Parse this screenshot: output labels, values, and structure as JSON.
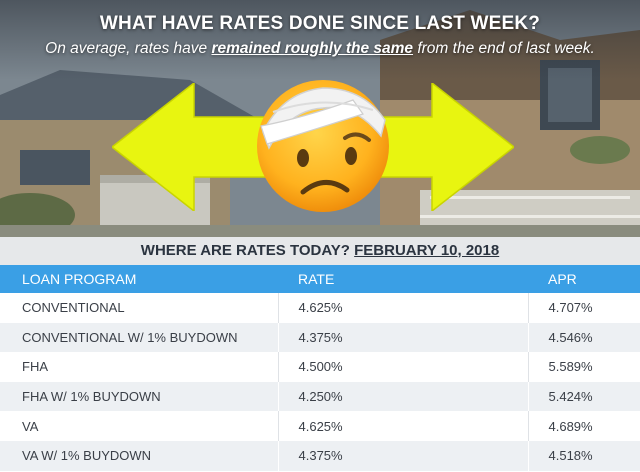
{
  "hero": {
    "headline": "WHAT HAVE RATES DONE SINCE LAST WEEK?",
    "subline_before": "On average, rates have ",
    "subline_emphasis": "remained roughly the same",
    "subline_after": " from the end of last week.",
    "arrow_icon": "double-arrow-left-right",
    "emoji_icon": "face-with-head-bandage",
    "arrow_color": "#e8f510"
  },
  "date_band": {
    "label": "WHERE ARE RATES TODAY? ",
    "date": "FEBRUARY 10, 2018"
  },
  "table": {
    "header_color": "#3a9fe5",
    "columns": [
      "LOAN PROGRAM",
      "RATE",
      "APR"
    ],
    "rows": [
      {
        "program": "CONVENTIONAL",
        "rate": "4.625%",
        "apr": "4.707%"
      },
      {
        "program": "CONVENTIONAL W/ 1% BUYDOWN",
        "rate": "4.375%",
        "apr": "4.546%"
      },
      {
        "program": "FHA",
        "rate": "4.500%",
        "apr": "5.589%"
      },
      {
        "program": "FHA W/ 1% BUYDOWN",
        "rate": "4.250%",
        "apr": "5.424%"
      },
      {
        "program": "VA",
        "rate": "4.625%",
        "apr": "4.689%"
      },
      {
        "program": "VA W/ 1% BUYDOWN",
        "rate": "4.375%",
        "apr": "4.518%"
      }
    ]
  }
}
